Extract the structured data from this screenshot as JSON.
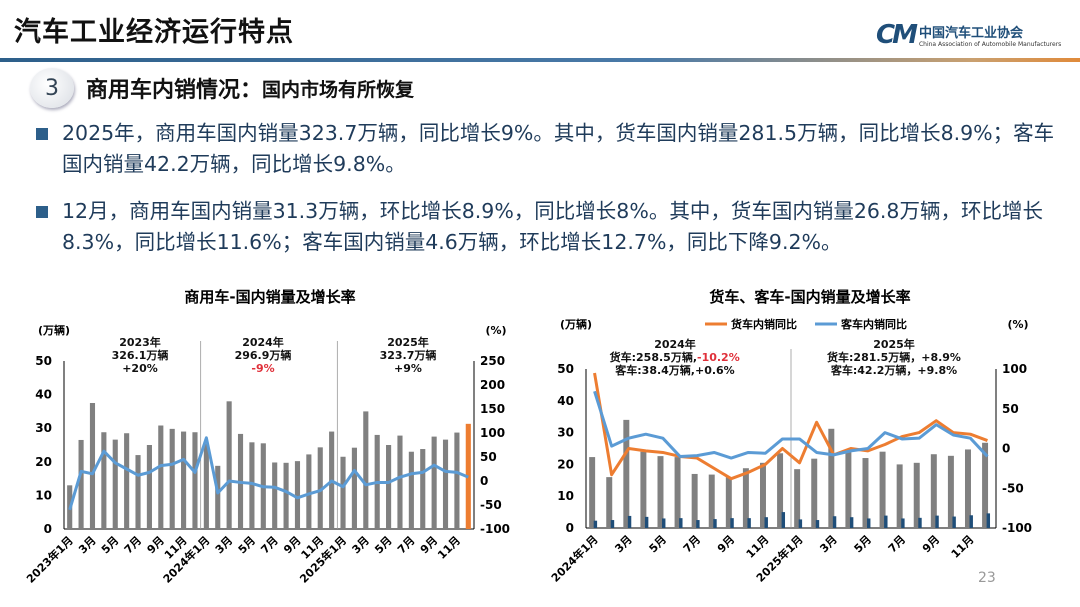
{
  "header": {
    "title": "汽车工业经济运行特点",
    "logo_cn": "中国汽车工业协会",
    "logo_en": "China Association of Automobile Manufacturers",
    "logo_mark": "CAM"
  },
  "section": {
    "number": "3",
    "title": "商用车内销情况：",
    "subtitle": "国内市场有所恢复"
  },
  "bullets": [
    "2025年，商用车国内销量323.7万辆，同比增长9%。其中，货车国内销量281.5万辆，同比增长8.9%；客车国内销量42.2万辆，同比增长9.8%。",
    "12月，商用车国内销量31.3万辆，环比增长8.9%，同比增长8%。其中，货车国内销量26.8万辆，环比增长8.3%，同比增长11.6%；客车国内销量4.6万辆，环比增长12.7%，同比下降9.2%。"
  ],
  "page_number": "23",
  "chart_data": [
    {
      "type": "bar+line",
      "title": "商用车-国内销量及增长率",
      "ylabel": "(万辆)",
      "y2label": "(%)",
      "ylim": [
        0,
        50
      ],
      "y2lim": [
        -100,
        250
      ],
      "yticks": [
        0,
        10,
        20,
        30,
        40,
        50
      ],
      "y2ticks": [
        -100,
        -50,
        0,
        50,
        100,
        150,
        200,
        250
      ],
      "tick_labels": [
        "2023年1月",
        "3月",
        "5月",
        "7月",
        "9月",
        "11月",
        "2024年1月",
        "3月",
        "5月",
        "7月",
        "9月",
        "11月",
        "2025年1月",
        "3月",
        "5月",
        "7月",
        "9月",
        "11月"
      ],
      "annotations": [
        {
          "lines": [
            "2023年",
            "326.1万辆",
            "+20%"
          ],
          "highlight": false
        },
        {
          "lines": [
            "2024年",
            "296.9万辆",
            "-9%"
          ],
          "highlight": true
        },
        {
          "lines": [
            "2025年",
            "323.7万辆",
            "+9%"
          ],
          "highlight": false
        }
      ],
      "bars": {
        "color": "#808080",
        "highlight_last_color": "#ed7d31",
        "values": [
          13,
          26.5,
          37.5,
          28.8,
          26.6,
          28.5,
          22,
          25,
          30.8,
          29.8,
          29,
          28.8,
          25.3,
          18.8,
          38,
          28.3,
          25.8,
          25.5,
          19.8,
          19.7,
          20.2,
          22.2,
          24.3,
          29,
          21.5,
          24.2,
          35,
          28,
          25,
          27.8,
          23,
          23.8,
          27.5,
          26.6,
          28.7,
          31.3
        ]
      },
      "line": {
        "color": "#5b9bd5",
        "values": [
          -60,
          20,
          15,
          62,
          38,
          25,
          12,
          18,
          32,
          35,
          45,
          18,
          90,
          -25,
          0,
          -3,
          -5,
          -12,
          -13,
          -22,
          -35,
          -27,
          -20,
          0,
          -12,
          22,
          -8,
          -3,
          -3,
          8,
          15,
          18,
          33,
          20,
          18,
          8
        ]
      }
    },
    {
      "type": "bar+line",
      "title": "货车、客车-国内销量及增长率",
      "ylabel": "(万辆)",
      "y2label": "(%)",
      "ylim": [
        0,
        50
      ],
      "y2lim": [
        -100,
        100
      ],
      "yticks": [
        0,
        10,
        20,
        30,
        40,
        50
      ],
      "y2ticks": [
        -100,
        -50,
        0,
        50,
        100
      ],
      "tick_labels": [
        "2024年1月",
        "3月",
        "5月",
        "7月",
        "9月",
        "11月",
        "2025年1月",
        "3月",
        "5月",
        "7月",
        "9月",
        "11月"
      ],
      "legend": {
        "position": "top",
        "items": [
          {
            "name": "货车内销同比",
            "color": "#ed7d31"
          },
          {
            "name": "客车内销同比",
            "color": "#5b9bd5"
          }
        ]
      },
      "annotations": [
        {
          "lines": [
            "2024年",
            "货车:258.5万辆,",
            "-10.2%",
            "客车:38.4万辆,+0.6%"
          ]
        },
        {
          "lines": [
            "2025年",
            "货车:281.5万辆，+8.9%",
            "客车:42.2万辆，+9.8%"
          ]
        }
      ],
      "bars": [
        {
          "color": "#808080",
          "values": [
            22.3,
            16,
            34,
            24,
            22.6,
            22.3,
            17,
            16.8,
            16,
            18.8,
            20.5,
            23.5,
            18.5,
            21.8,
            31.2,
            24,
            22,
            24,
            20,
            20.5,
            23.2,
            22.7,
            24.7,
            26.8
          ]
        },
        {
          "color": "#1f4e79",
          "values": [
            2.3,
            2.5,
            3.8,
            3.5,
            3,
            3.1,
            2.5,
            2.8,
            3.1,
            3.1,
            3.4,
            5,
            2.7,
            2.5,
            3.7,
            3.4,
            3,
            3.9,
            3,
            3.2,
            3.9,
            3.6,
            4,
            4.6
          ]
        }
      ],
      "lines": [
        {
          "name": "货车内销同比",
          "color": "#ed7d31",
          "values": [
            95,
            -33,
            0,
            -3,
            -5,
            -10,
            -12,
            -25,
            -38,
            -30,
            -20,
            0,
            -18,
            33,
            -8,
            0,
            -3,
            5,
            15,
            20,
            35,
            20,
            18,
            10
          ]
        },
        {
          "name": "客车内销同比",
          "color": "#5b9bd5",
          "values": [
            72,
            3,
            13,
            18,
            13,
            -10,
            -9,
            -5,
            -12,
            -5,
            -6,
            12,
            12,
            -5,
            -8,
            -3,
            0,
            20,
            12,
            13,
            30,
            17,
            13,
            -10
          ]
        }
      ]
    }
  ]
}
